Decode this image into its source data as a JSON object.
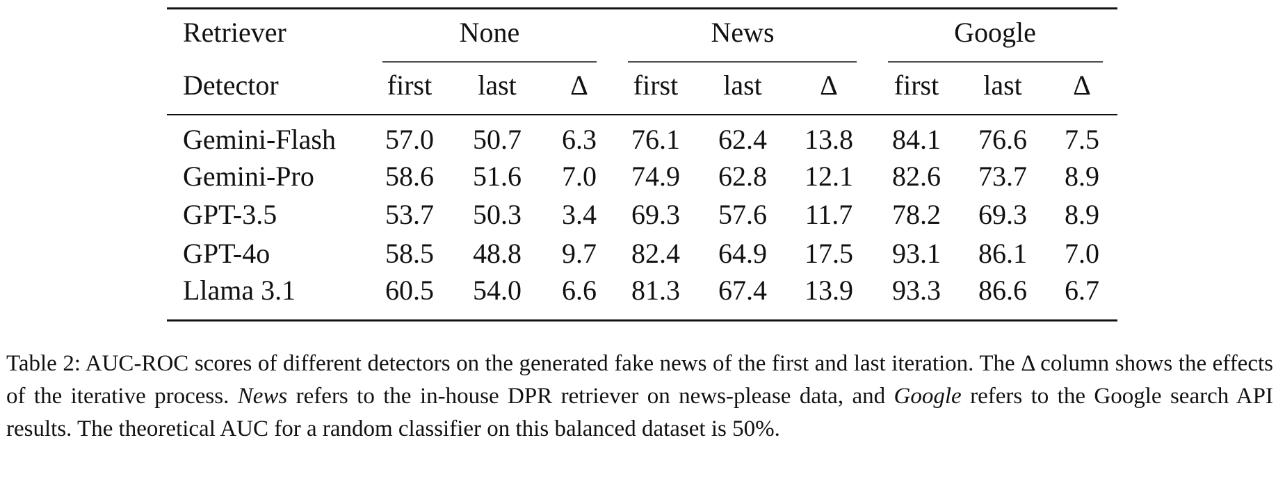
{
  "table": {
    "header": {
      "retriever": "Retriever",
      "detector": "Detector",
      "groups": [
        "None",
        "News",
        "Google"
      ],
      "subcolumns": [
        "first",
        "last",
        "Δ"
      ]
    },
    "rows": [
      {
        "detector": "Gemini-Flash",
        "values": [
          "57.0",
          "50.7",
          "6.3",
          "76.1",
          "62.4",
          "13.8",
          "84.1",
          "76.6",
          "7.5"
        ]
      },
      {
        "detector": "Gemini-Pro",
        "values": [
          "58.6",
          "51.6",
          "7.0",
          "74.9",
          "62.8",
          "12.1",
          "82.6",
          "73.7",
          "8.9"
        ]
      },
      {
        "detector": "GPT-3.5",
        "values": [
          "53.7",
          "50.3",
          "3.4",
          "69.3",
          "57.6",
          "11.7",
          "78.2",
          "69.3",
          "8.9"
        ]
      },
      {
        "detector": "GPT-4o",
        "values": [
          "58.5",
          "48.8",
          "9.7",
          "82.4",
          "64.9",
          "17.5",
          "93.1",
          "86.1",
          "7.0"
        ]
      },
      {
        "detector": "Llama 3.1",
        "values": [
          "60.5",
          "54.0",
          "6.6",
          "81.3",
          "67.4",
          "13.9",
          "93.3",
          "86.6",
          "6.7"
        ]
      }
    ]
  },
  "caption": [
    "Table 2: AUC-ROC scores of different detectors on the generated fake news of the first and last iteration. The Δ column shows the effects of the iterative process. ",
    "News",
    " refers to the in-house DPR retriever on news-please data, and ",
    "Google",
    " refers to the Google search API results. The theoretical AUC for a random classifier on this balanced dataset is 50%."
  ]
}
